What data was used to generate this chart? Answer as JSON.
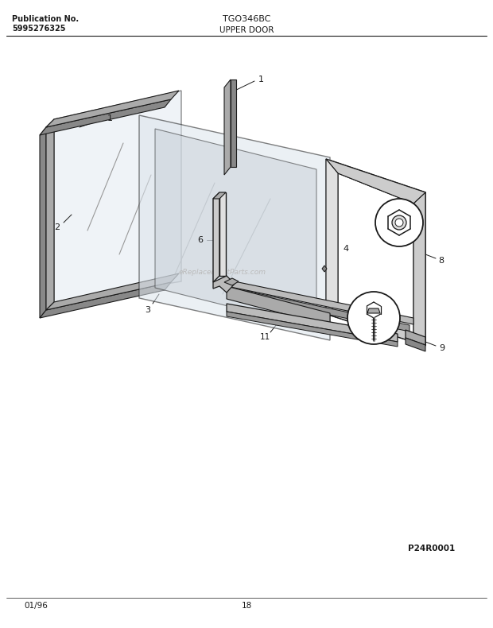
{
  "bg_color": "#ffffff",
  "line_color": "#1a1a1a",
  "header": {
    "pub_label": "Publication No.",
    "pub_number": "5995276325",
    "model": "TGO346BC",
    "section": "UPPER DOOR"
  },
  "footer": {
    "date": "01/96",
    "page": "18",
    "diagram_id": "P24R0001"
  },
  "watermark": "eReplacementParts.com"
}
